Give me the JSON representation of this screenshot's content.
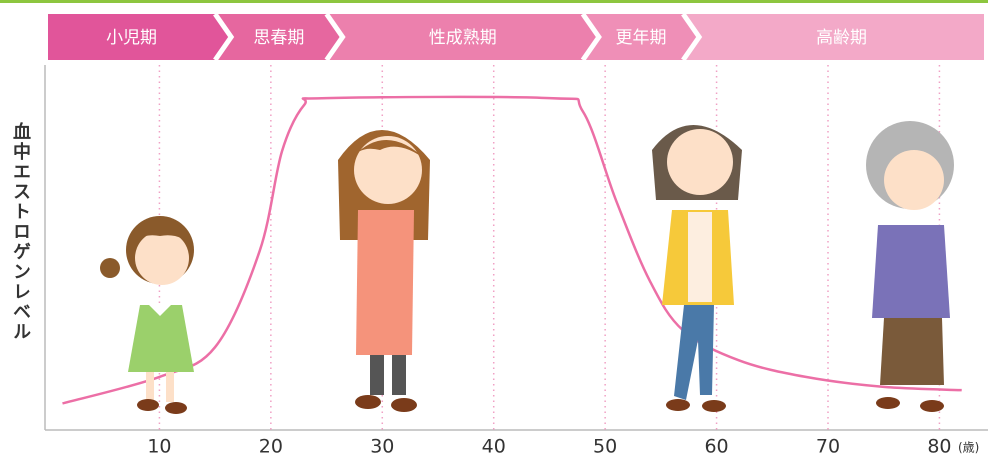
{
  "chart_data": {
    "type": "line",
    "y_label": "血中エストロゲンレベル",
    "x_unit": "(歳)",
    "x": [
      1.3,
      10,
      15,
      19,
      21,
      23,
      25,
      45,
      48,
      51,
      54,
      57,
      62,
      68,
      75,
      82
    ],
    "series": [
      {
        "color": "#ec6fa6",
        "values": [
          8,
          16,
          25,
          54,
          84,
          98,
          100,
          100,
          96,
          69,
          45,
          30,
          21,
          16,
          13,
          12
        ]
      }
    ],
    "xlim": [
      0,
      84
    ],
    "ylim": [
      0,
      110
    ],
    "xticks": [
      10,
      20,
      30,
      40,
      50,
      60,
      70,
      80
    ],
    "grid": true,
    "grid_color": "#f0a0c4",
    "stages": [
      {
        "label": "小児期",
        "start": 0,
        "end": 15,
        "color": "#e1559a"
      },
      {
        "label": "思春期",
        "start": 15,
        "end": 25,
        "color": "#e6679f"
      },
      {
        "label": "性成熟期",
        "start": 25,
        "end": 48,
        "color": "#ec80ad"
      },
      {
        "label": "更年期",
        "start": 48,
        "end": 57,
        "color": "#ef8fb7"
      },
      {
        "label": "高齢期",
        "start": 57,
        "end": 84,
        "color": "#f3a9c8"
      }
    ]
  }
}
